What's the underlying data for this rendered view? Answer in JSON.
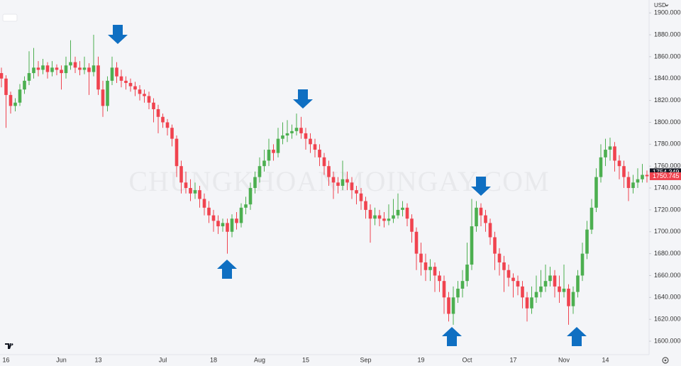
{
  "chart_data": {
    "type": "candlestick",
    "watermark": "CHUNGKHOANMOINGAY.COM",
    "currency": "USD",
    "up_color": "#4caf50",
    "down_color": "#f0434f",
    "grid": false,
    "ylim": [
      1587.7,
      1911.8
    ],
    "yticks": [
      {
        "value": 1600,
        "label": "1600.000"
      },
      {
        "value": 1620,
        "label": "1620.000"
      },
      {
        "value": 1640,
        "label": "1640.000"
      },
      {
        "value": 1660,
        "label": "1660.000"
      },
      {
        "value": 1680,
        "label": "1680.000"
      },
      {
        "value": 1700,
        "label": "1700.000"
      },
      {
        "value": 1720,
        "label": "1720.000"
      },
      {
        "value": 1740,
        "label": "1740.000"
      },
      {
        "value": 1760,
        "label": "1760.000"
      },
      {
        "value": 1780,
        "label": "1780.000"
      },
      {
        "value": 1800,
        "label": "1800.000"
      },
      {
        "value": 1820,
        "label": "1820.000"
      },
      {
        "value": 1840,
        "label": "1840.000"
      },
      {
        "value": 1860,
        "label": "1860.000"
      },
      {
        "value": 1880,
        "label": "1880.000"
      },
      {
        "value": 1900,
        "label": "1900.000"
      }
    ],
    "price_labels": [
      {
        "value": 1754.349,
        "label": "1754.349",
        "color": "#131722"
      },
      {
        "value": 1750.745,
        "label": "1750.745",
        "color": "#f0434f"
      }
    ],
    "categories": [
      null,
      "16",
      null,
      null,
      null,
      null,
      null,
      null,
      null,
      null,
      null,
      null,
      null,
      "Jun",
      null,
      null,
      null,
      null,
      null,
      null,
      null,
      "13",
      null,
      null,
      null,
      null,
      null,
      null,
      null,
      null,
      null,
      null,
      null,
      null,
      null,
      "Jul",
      null,
      null,
      null,
      null,
      null,
      null,
      null,
      null,
      null,
      null,
      "18",
      null,
      null,
      null,
      null,
      null,
      null,
      null,
      null,
      null,
      "Aug",
      null,
      null,
      null,
      null,
      null,
      null,
      null,
      null,
      null,
      "15",
      null,
      null,
      null,
      null,
      null,
      null,
      null,
      null,
      null,
      null,
      null,
      null,
      "Sep",
      null,
      null,
      null,
      null,
      null,
      null,
      null,
      null,
      null,
      null,
      null,
      "19",
      null,
      null,
      null,
      null,
      null,
      null,
      null,
      null,
      null,
      "Oct",
      null,
      null,
      null,
      null,
      null,
      null,
      null,
      null,
      null,
      "17",
      null,
      null,
      null,
      null,
      null,
      null,
      null,
      null,
      null,
      null,
      "Nov",
      null,
      null,
      null,
      null,
      null,
      null,
      null,
      null,
      "14",
      null,
      null,
      null,
      null,
      null,
      null,
      null,
      null,
      null
    ],
    "open": [
      1845,
      1840,
      1825,
      1815,
      1818,
      1830,
      1838,
      1845,
      1850,
      1848,
      1852,
      1846,
      1850,
      1848,
      1845,
      1852,
      1855,
      1850,
      1848,
      1850,
      1846,
      1852,
      1830,
      1815,
      1838,
      1850,
      1842,
      1838,
      1836,
      1833,
      1830,
      1826,
      1824,
      1818,
      1812,
      1805,
      1800,
      1795,
      1785,
      1760,
      1745,
      1740,
      1735,
      1738,
      1730,
      1722,
      1715,
      1710,
      1705,
      1708,
      1700,
      1712,
      1708,
      1722,
      1725,
      1740,
      1750,
      1760,
      1765,
      1775,
      1772,
      1785,
      1788,
      1790,
      1792,
      1795,
      1790,
      1785,
      1780,
      1775,
      1768,
      1760,
      1750,
      1745,
      1742,
      1748,
      1745,
      1738,
      1735,
      1728,
      1720,
      1712,
      1715,
      1712,
      1710,
      1712,
      1715,
      1720,
      1722,
      1712,
      1700,
      1680,
      1672,
      1665,
      1668,
      1660,
      1655,
      1640,
      1625,
      1640,
      1648,
      1655,
      1670,
      1705,
      1722,
      1715,
      1708,
      1695,
      1680,
      1672,
      1665,
      1658,
      1655,
      1650,
      1640,
      1630,
      1640,
      1645,
      1650,
      1655,
      1660,
      1650,
      1645,
      1648,
      1632,
      1645,
      1660,
      1680,
      1702,
      1722,
      1750,
      1768,
      1775,
      1778,
      1765,
      1760,
      1750,
      1740,
      1745,
      1748,
      1752
    ],
    "high": [
      1850,
      1843,
      1828,
      1822,
      1835,
      1842,
      1865,
      1868,
      1856,
      1858,
      1855,
      1856,
      1853,
      1852,
      1860,
      1875,
      1860,
      1856,
      1860,
      1854,
      1880,
      1860,
      1838,
      1842,
      1860,
      1855,
      1848,
      1842,
      1840,
      1837,
      1834,
      1830,
      1828,
      1822,
      1816,
      1808,
      1803,
      1798,
      1788,
      1765,
      1755,
      1748,
      1745,
      1742,
      1735,
      1728,
      1720,
      1715,
      1712,
      1712,
      1716,
      1718,
      1726,
      1732,
      1745,
      1755,
      1768,
      1775,
      1785,
      1780,
      1795,
      1800,
      1802,
      1798,
      1808,
      1805,
      1795,
      1790,
      1785,
      1780,
      1772,
      1765,
      1755,
      1750,
      1765,
      1755,
      1750,
      1742,
      1740,
      1732,
      1725,
      1722,
      1720,
      1718,
      1725,
      1730,
      1735,
      1728,
      1726,
      1716,
      1704,
      1690,
      1680,
      1675,
      1672,
      1664,
      1660,
      1645,
      1650,
      1655,
      1665,
      1690,
      1730,
      1728,
      1726,
      1720,
      1712,
      1700,
      1685,
      1678,
      1670,
      1662,
      1660,
      1655,
      1645,
      1650,
      1660,
      1665,
      1670,
      1668,
      1665,
      1660,
      1670,
      1652,
      1650,
      1665,
      1690,
      1710,
      1730,
      1758,
      1780,
      1785,
      1786,
      1782,
      1770,
      1765,
      1755,
      1752,
      1758,
      1762,
      1756
    ],
    "low": [
      1832,
      1795,
      1808,
      1810,
      1815,
      1826,
      1834,
      1840,
      1842,
      1844,
      1840,
      1842,
      1843,
      1830,
      1840,
      1848,
      1845,
      1843,
      1844,
      1825,
      1842,
      1825,
      1805,
      1810,
      1834,
      1836,
      1832,
      1830,
      1828,
      1824,
      1820,
      1818,
      1812,
      1800,
      1790,
      1795,
      1788,
      1778,
      1750,
      1735,
      1735,
      1728,
      1730,
      1722,
      1715,
      1708,
      1700,
      1698,
      1700,
      1680,
      1695,
      1702,
      1704,
      1716,
      1720,
      1735,
      1745,
      1755,
      1760,
      1765,
      1768,
      1780,
      1782,
      1785,
      1788,
      1785,
      1775,
      1772,
      1768,
      1760,
      1752,
      1742,
      1730,
      1735,
      1738,
      1738,
      1730,
      1725,
      1720,
      1712,
      1690,
      1706,
      1705,
      1704,
      1706,
      1708,
      1712,
      1714,
      1705,
      1690,
      1665,
      1660,
      1655,
      1655,
      1645,
      1645,
      1625,
      1618,
      1615,
      1635,
      1640,
      1650,
      1665,
      1700,
      1705,
      1700,
      1688,
      1665,
      1660,
      1645,
      1650,
      1640,
      1642,
      1630,
      1618,
      1625,
      1635,
      1640,
      1645,
      1650,
      1640,
      1635,
      1640,
      1615,
      1625,
      1640,
      1655,
      1675,
      1698,
      1718,
      1745,
      1760,
      1765,
      1755,
      1748,
      1740,
      1728,
      1735,
      1740,
      1745,
      1745
    ],
    "close": [
      1840,
      1825,
      1815,
      1818,
      1830,
      1838,
      1845,
      1850,
      1848,
      1852,
      1846,
      1850,
      1848,
      1845,
      1852,
      1855,
      1850,
      1848,
      1850,
      1846,
      1852,
      1830,
      1815,
      1838,
      1850,
      1842,
      1838,
      1836,
      1833,
      1830,
      1826,
      1824,
      1818,
      1812,
      1805,
      1800,
      1795,
      1785,
      1760,
      1745,
      1740,
      1735,
      1738,
      1730,
      1722,
      1715,
      1710,
      1705,
      1708,
      1700,
      1712,
      1708,
      1722,
      1725,
      1740,
      1750,
      1760,
      1765,
      1775,
      1772,
      1785,
      1788,
      1790,
      1792,
      1795,
      1790,
      1785,
      1780,
      1775,
      1768,
      1760,
      1750,
      1745,
      1742,
      1748,
      1745,
      1738,
      1735,
      1728,
      1720,
      1712,
      1715,
      1712,
      1710,
      1712,
      1715,
      1720,
      1722,
      1712,
      1700,
      1680,
      1672,
      1665,
      1668,
      1660,
      1655,
      1640,
      1625,
      1640,
      1648,
      1655,
      1670,
      1705,
      1722,
      1715,
      1708,
      1695,
      1680,
      1672,
      1665,
      1658,
      1655,
      1650,
      1640,
      1630,
      1640,
      1645,
      1650,
      1655,
      1660,
      1650,
      1645,
      1648,
      1632,
      1645,
      1660,
      1680,
      1702,
      1722,
      1750,
      1768,
      1775,
      1778,
      1765,
      1760,
      1750,
      1740,
      1745,
      1748,
      1752,
      1750.745
    ]
  }
}
